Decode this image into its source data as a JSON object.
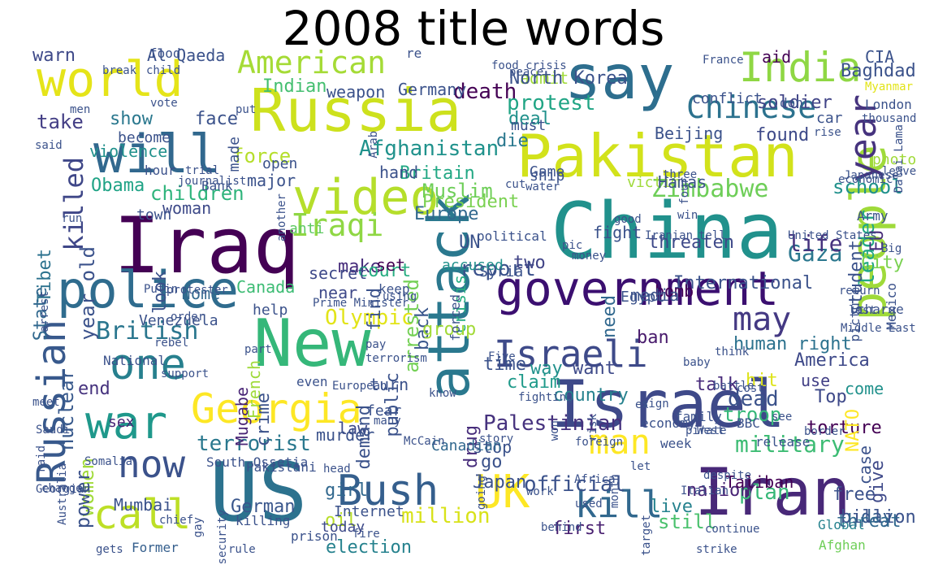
{
  "title": "2008 title words",
  "words": [
    {
      "text": "say",
      "color": "#2d6e8e"
    },
    {
      "text": "Russia",
      "color": "#cde11d"
    },
    {
      "text": "Pakistan",
      "color": "#d2e21b"
    },
    {
      "text": "China",
      "color": "#21918c"
    },
    {
      "text": "Iraq",
      "color": "#440154"
    },
    {
      "text": "government",
      "color": "#3b0f70"
    },
    {
      "text": "New",
      "color": "#35b779"
    },
    {
      "text": "Israel",
      "color": "#3e4989"
    },
    {
      "text": "US",
      "color": "#2c728e"
    },
    {
      "text": "Iran",
      "color": "#482878"
    },
    {
      "text": "attack",
      "color": "#2a788e"
    },
    {
      "text": "people",
      "color": "#9fda3a"
    },
    {
      "text": "world",
      "color": "#e5e419"
    },
    {
      "text": "will",
      "color": "#31688e"
    },
    {
      "text": "video",
      "color": "#b5de2b"
    },
    {
      "text": "police",
      "color": "#2f6c8e"
    },
    {
      "text": "Georgia",
      "color": "#fde725"
    },
    {
      "text": "war",
      "color": "#1f988b"
    },
    {
      "text": "Bush",
      "color": "#355f8d"
    },
    {
      "text": "UK",
      "color": "#fde725"
    },
    {
      "text": "India",
      "color": "#8fd744"
    },
    {
      "text": "Israeli",
      "color": "#3e4a89"
    },
    {
      "text": "now",
      "color": "#3b528b"
    },
    {
      "text": "one",
      "color": "#27808e"
    },
    {
      "text": "Russian",
      "color": "#38598c"
    },
    {
      "text": "call",
      "color": "#bddf26"
    },
    {
      "text": "year",
      "color": "#46337e"
    },
    {
      "text": "man",
      "color": "#fde725"
    },
    {
      "text": "kill",
      "color": "#31688e"
    },
    {
      "text": "Chinese",
      "color": "#2c728e"
    },
    {
      "text": "American",
      "color": "#a5db36"
    },
    {
      "text": "may",
      "color": "#443983"
    },
    {
      "text": "Zimbabwe",
      "color": "#6ece58"
    },
    {
      "text": "Iraqi",
      "color": "#8fd744"
    },
    {
      "text": "military",
      "color": "#3dbc74"
    },
    {
      "text": "killed",
      "color": "#3f4788"
    },
    {
      "text": "British",
      "color": "#2a768e"
    },
    {
      "text": "Afghanistan",
      "color": "#20928c"
    },
    {
      "text": "terrorist",
      "color": "#2a788e"
    },
    {
      "text": "official",
      "color": "#3b528b"
    },
    {
      "text": "protest",
      "color": "#21a585"
    },
    {
      "text": "children",
      "color": "#2fb47c"
    },
    {
      "text": "force",
      "color": "#b5de2b"
    },
    {
      "text": "Gaza",
      "color": "#2a778e"
    },
    {
      "text": "report",
      "color": "#3b528b"
    },
    {
      "text": "Olympic",
      "color": "#e2e418"
    },
    {
      "text": "Muslim",
      "color": "#6ece58"
    },
    {
      "text": "death",
      "color": "#440154"
    },
    {
      "text": "leader",
      "color": "#22a884"
    },
    {
      "text": "dead",
      "color": "#3b528b"
    },
    {
      "text": "plan",
      "color": "#37b878"
    },
    {
      "text": "million",
      "color": "#d8e219"
    },
    {
      "text": "oil",
      "color": "#b8de29"
    },
    {
      "text": "first",
      "color": "#481f70"
    },
    {
      "text": "Palestinian",
      "color": "#46327e"
    },
    {
      "text": "day",
      "color": "#365c8d"
    },
    {
      "text": "back",
      "color": "#39568c"
    },
    {
      "text": "crisis",
      "color": "#27ad81"
    },
    {
      "text": "arrested",
      "color": "#74d055"
    },
    {
      "text": "group",
      "color": "#a2da37"
    },
    {
      "text": "make",
      "color": "#472d7b"
    },
    {
      "text": "take",
      "color": "#433e85"
    },
    {
      "text": "face",
      "color": "#3b528b"
    },
    {
      "text": "show",
      "color": "#2a788e"
    },
    {
      "text": "Britain",
      "color": "#22a884"
    },
    {
      "text": "Obama",
      "color": "#20a386"
    },
    {
      "text": "woman",
      "color": "#3e4a89"
    },
    {
      "text": "President",
      "color": "#7ad151"
    },
    {
      "text": "UN",
      "color": "#3b528b"
    },
    {
      "text": "two",
      "color": "#414487"
    },
    {
      "text": "court",
      "color": "#27ad81"
    },
    {
      "text": "secret",
      "color": "#3e4989"
    },
    {
      "text": "Europe",
      "color": "#31688e"
    },
    {
      "text": "die",
      "color": "#2a788e"
    },
    {
      "text": "deal",
      "color": "#21918c"
    },
    {
      "text": "Indian",
      "color": "#44bf70"
    },
    {
      "text": "soldier",
      "color": "#414487"
    },
    {
      "text": "school",
      "color": "#21918c"
    },
    {
      "text": "life",
      "color": "#46337e"
    },
    {
      "text": "EU",
      "color": "#472c7a"
    },
    {
      "text": "found",
      "color": "#3e4a89"
    },
    {
      "text": "human right",
      "color": "#2c728e"
    },
    {
      "text": "America",
      "color": "#3e4989"
    },
    {
      "text": "Top",
      "color": "#3e4989"
    },
    {
      "text": "hit",
      "color": "#dde318"
    },
    {
      "text": "use",
      "color": "#424086"
    },
    {
      "text": "talk",
      "color": "#472a7a"
    },
    {
      "text": "ban",
      "color": "#481a6c"
    },
    {
      "text": "want",
      "color": "#3e4a89"
    },
    {
      "text": "claim",
      "color": "#1f9a8a"
    },
    {
      "text": "time",
      "color": "#3b528b"
    },
    {
      "text": "troop",
      "color": "#35b779"
    },
    {
      "text": "torture",
      "color": "#440154"
    },
    {
      "text": "free",
      "color": "#3b528b"
    },
    {
      "text": "still",
      "color": "#4ac16d"
    },
    {
      "text": "live",
      "color": "#26828e"
    },
    {
      "text": "go",
      "color": "#3b528b"
    },
    {
      "text": "drug",
      "color": "#472d7b"
    },
    {
      "text": "Japan",
      "color": "#3b528b"
    },
    {
      "text": "country",
      "color": "#26828e"
    },
    {
      "text": "law",
      "color": "#3e4a89"
    },
    {
      "text": "girl",
      "color": "#31688e"
    },
    {
      "text": "women",
      "color": "#a0da39"
    },
    {
      "text": "power",
      "color": "#3b528b"
    },
    {
      "text": "end",
      "color": "#46337e"
    },
    {
      "text": "nuclear",
      "color": "#38598c"
    },
    {
      "text": "year old",
      "color": "#3b528b"
    },
    {
      "text": "Tibet",
      "color": "#2c728e"
    },
    {
      "text": "State",
      "color": "#31688e"
    },
    {
      "text": "violence",
      "color": "#21918c"
    },
    {
      "text": "Canada",
      "color": "#3dbc74"
    },
    {
      "text": "home",
      "color": "#31688e"
    },
    {
      "text": "help",
      "color": "#3b528b"
    },
    {
      "text": "French",
      "color": "#9fda3a"
    },
    {
      "text": "Mugabe",
      "color": "#482475"
    },
    {
      "text": "German",
      "color": "#39568c"
    },
    {
      "text": "Mumbai",
      "color": "#3b528b"
    },
    {
      "text": "Former",
      "color": "#355f8d"
    },
    {
      "text": "today",
      "color": "#3e4a89"
    },
    {
      "text": "election",
      "color": "#26828e"
    },
    {
      "text": "nation",
      "color": "#482475"
    },
    {
      "text": "Taliban",
      "color": "#440154"
    },
    {
      "text": "Global",
      "color": "#26828e"
    },
    {
      "text": "billion",
      "color": "#3b528b"
    },
    {
      "text": "Afghan",
      "color": "#6ece58"
    },
    {
      "text": "threat",
      "color": "#31688e"
    },
    {
      "text": "give",
      "color": "#3e4989"
    },
    {
      "text": "NATO",
      "color": "#fde725"
    },
    {
      "text": "come",
      "color": "#21918c"
    },
    {
      "text": "case",
      "color": "#3b528b"
    },
    {
      "text": "City",
      "color": "#7ad151"
    },
    {
      "text": "student",
      "color": "#3b528b"
    },
    {
      "text": "International",
      "color": "#3b528b"
    },
    {
      "text": "bomb",
      "color": "#440154"
    },
    {
      "text": "media",
      "color": "#3b528b"
    },
    {
      "text": "need",
      "color": "#31688e"
    },
    {
      "text": "threaten",
      "color": "#3e4989"
    },
    {
      "text": "fight",
      "color": "#3b528b"
    },
    {
      "text": "way",
      "color": "#21918c"
    },
    {
      "text": "anti",
      "color": "#5ec962"
    },
    {
      "text": "accused",
      "color": "#21918c"
    },
    {
      "text": "set",
      "color": "#440154"
    },
    {
      "text": "near",
      "color": "#3e4989"
    },
    {
      "text": "find",
      "color": "#3b528b"
    },
    {
      "text": "look",
      "color": "#3b528b"
    },
    {
      "text": "Venezuela",
      "color": "#3b528b"
    },
    {
      "text": "turn",
      "color": "#3b528b"
    },
    {
      "text": "sex",
      "color": "#482475"
    },
    {
      "text": "crime",
      "color": "#3b528b"
    },
    {
      "text": "public",
      "color": "#3b528b"
    },
    {
      "text": "murder",
      "color": "#3b528b"
    },
    {
      "text": "Internet",
      "color": "#3b528b"
    },
    {
      "text": "stop",
      "color": "#3b528b"
    },
    {
      "text": "Canadian",
      "color": "#31688e"
    },
    {
      "text": "demand",
      "color": "#3b528b"
    },
    {
      "text": "warn",
      "color": "#3e4989"
    },
    {
      "text": "Al Qaeda",
      "color": "#3b528b"
    },
    {
      "text": "food",
      "color": "#3b528b"
    },
    {
      "text": "re",
      "color": "#3b528b"
    },
    {
      "text": "admit",
      "color": "#a0da39"
    },
    {
      "text": "North Korea",
      "color": "#3b528b"
    },
    {
      "text": "peace",
      "color": "#3b528b"
    },
    {
      "text": "aid",
      "color": "#440154"
    },
    {
      "text": "CIA",
      "color": "#3b528b"
    },
    {
      "text": "France",
      "color": "#3b528b"
    },
    {
      "text": "Baghdad",
      "color": "#3b528b"
    },
    {
      "text": "Myanmar",
      "color": "#e2e418"
    },
    {
      "text": "don",
      "color": "#3b528b"
    },
    {
      "text": "car",
      "color": "#3b528b"
    },
    {
      "text": "London",
      "color": "#3b528b"
    },
    {
      "text": "conflict",
      "color": "#3b528b"
    },
    {
      "text": "Beijing",
      "color": "#3b528b"
    },
    {
      "text": "victim",
      "color": "#9fda3a"
    },
    {
      "text": "Hamas",
      "color": "#3b528b"
    },
    {
      "text": "weapon",
      "color": "#3b528b"
    },
    {
      "text": "Germany",
      "color": "#3b528b"
    },
    {
      "text": "vote",
      "color": "#3b528b"
    },
    {
      "text": "men",
      "color": "#3b528b"
    },
    {
      "text": "put",
      "color": "#3b528b"
    },
    {
      "text": "become",
      "color": "#3b528b"
    },
    {
      "text": "hour",
      "color": "#3b528b"
    },
    {
      "text": "Bank",
      "color": "#3b528b"
    },
    {
      "text": "made",
      "color": "#3b528b"
    },
    {
      "text": "open",
      "color": "#3b528b"
    },
    {
      "text": "said",
      "color": "#3b528b"
    },
    {
      "text": "trial",
      "color": "#3b528b"
    },
    {
      "text": "journalist",
      "color": "#3b528b"
    },
    {
      "text": "major",
      "color": "#3b528b"
    },
    {
      "text": "hand",
      "color": "#3b528b"
    },
    {
      "text": "another",
      "color": "#3b528b"
    },
    {
      "text": "ship",
      "color": "#3b528b"
    },
    {
      "text": "water",
      "color": "#3b528b"
    },
    {
      "text": "cut",
      "color": "#3b528b"
    },
    {
      "text": "must",
      "color": "#3b528b"
    },
    {
      "text": "Game",
      "color": "#3b528b"
    },
    {
      "text": "photo",
      "color": "#a0da39"
    },
    {
      "text": "economic",
      "color": "#3b528b"
    },
    {
      "text": "Army",
      "color": "#3b528b"
    },
    {
      "text": "leave",
      "color": "#3b528b"
    },
    {
      "text": "Dalai Lama",
      "color": "#3b528b"
    },
    {
      "text": "thousand",
      "color": "#3b528b"
    },
    {
      "text": "political",
      "color": "#3b528b"
    },
    {
      "text": "town",
      "color": "#3b528b"
    },
    {
      "text": "Iranian",
      "color": "#3b528b"
    },
    {
      "text": "tell",
      "color": "#3b528b"
    },
    {
      "text": "United States",
      "color": "#3b528b"
    },
    {
      "text": "Putin",
      "color": "#3b528b"
    },
    {
      "text": "protester",
      "color": "#3b528b"
    },
    {
      "text": "Syria",
      "color": "#3b528b"
    },
    {
      "text": "pic",
      "color": "#3b528b"
    },
    {
      "text": "money",
      "color": "#3b528b"
    },
    {
      "text": "good",
      "color": "#3b528b"
    },
    {
      "text": "Egypt",
      "color": "#3b528b"
    },
    {
      "text": "Big",
      "color": "#3b528b"
    },
    {
      "text": "Mexico",
      "color": "#3b528b"
    },
    {
      "text": "picture",
      "color": "#3b528b"
    },
    {
      "text": "charge",
      "color": "#3b528b"
    },
    {
      "text": "return",
      "color": "#3b528b"
    },
    {
      "text": "Middle East",
      "color": "#3b528b"
    },
    {
      "text": "last",
      "color": "#3b528b"
    },
    {
      "text": "National",
      "color": "#3b528b"
    },
    {
      "text": "part",
      "color": "#3b528b"
    },
    {
      "text": "Prime Minister",
      "color": "#3b528b"
    },
    {
      "text": "using",
      "color": "#3b528b"
    },
    {
      "text": "keep",
      "color": "#3b528b"
    },
    {
      "text": "forced",
      "color": "#3b528b"
    },
    {
      "text": "pay",
      "color": "#3b528b"
    },
    {
      "text": "terrorism",
      "color": "#3b528b"
    },
    {
      "text": "order",
      "color": "#3b528b"
    },
    {
      "text": "arrest",
      "color": "#3b528b"
    },
    {
      "text": "even",
      "color": "#3b528b"
    },
    {
      "text": "European",
      "color": "#3b528b"
    },
    {
      "text": "Five",
      "color": "#3b528b"
    },
    {
      "text": "fear",
      "color": "#3b528b"
    },
    {
      "text": "know",
      "color": "#3b528b"
    },
    {
      "text": "BBC",
      "color": "#3b528b"
    },
    {
      "text": "battle",
      "color": "#3b528b"
    },
    {
      "text": "see",
      "color": "#3b528b"
    },
    {
      "text": "baby",
      "color": "#3b528b"
    },
    {
      "text": "think",
      "color": "#3b528b"
    },
    {
      "text": "despite",
      "color": "#3b528b"
    },
    {
      "text": "ex",
      "color": "#3b528b"
    },
    {
      "text": "cost",
      "color": "#3b528b"
    },
    {
      "text": "pirate",
      "color": "#3b528b"
    },
    {
      "text": "fighting",
      "color": "#3b528b"
    },
    {
      "text": "rebel",
      "color": "#3b528b"
    },
    {
      "text": "many",
      "color": "#3b528b"
    },
    {
      "text": "meet",
      "color": "#3b528b"
    },
    {
      "text": "support",
      "color": "#3b528b"
    },
    {
      "text": "Saudi",
      "color": "#3b528b"
    },
    {
      "text": "change",
      "color": "#3b528b"
    },
    {
      "text": "Australia",
      "color": "#3b528b"
    },
    {
      "text": "raid",
      "color": "#3b528b"
    },
    {
      "text": "Somalia",
      "color": "#3b528b"
    },
    {
      "text": "South Ossetia",
      "color": "#3b528b"
    },
    {
      "text": "Pakistani",
      "color": "#3b528b"
    },
    {
      "text": "head",
      "color": "#3b528b"
    },
    {
      "text": "McCain",
      "color": "#3b528b"
    },
    {
      "text": "story",
      "color": "#3b528b"
    },
    {
      "text": "won",
      "color": "#3b528b"
    },
    {
      "text": "foreign",
      "color": "#3b528b"
    },
    {
      "text": "risk",
      "color": "#3b528b"
    },
    {
      "text": "family",
      "color": "#3b528b"
    },
    {
      "text": "release",
      "color": "#3b528b"
    },
    {
      "text": "border",
      "color": "#3b528b"
    },
    {
      "text": "Africa",
      "color": "#3b528b"
    },
    {
      "text": "work",
      "color": "#3b528b"
    },
    {
      "text": "used",
      "color": "#3b528b"
    },
    {
      "text": "month",
      "color": "#3b528b"
    },
    {
      "text": "let",
      "color": "#3b528b"
    },
    {
      "text": "Italian",
      "color": "#3b528b"
    },
    {
      "text": "sign",
      "color": "#3b528b"
    },
    {
      "text": "West",
      "color": "#3b528b"
    },
    {
      "text": "Georgian",
      "color": "#3b528b"
    },
    {
      "text": "chief",
      "color": "#3b528b"
    },
    {
      "text": "gay",
      "color": "#3b528b"
    },
    {
      "text": "security",
      "color": "#3b528b"
    },
    {
      "text": "killing",
      "color": "#3b528b"
    },
    {
      "text": "prison",
      "color": "#3b528b"
    },
    {
      "text": "fire",
      "color": "#3b528b"
    },
    {
      "text": "behind",
      "color": "#3b528b"
    },
    {
      "text": "target",
      "color": "#3b528b"
    },
    {
      "text": "continue",
      "color": "#3b528b"
    },
    {
      "text": "strike",
      "color": "#3b528b"
    },
    {
      "text": "gets",
      "color": "#3b528b"
    },
    {
      "text": "rule",
      "color": "#3b528b"
    },
    {
      "text": "week",
      "color": "#3b528b"
    },
    {
      "text": "economy",
      "color": "#3b528b"
    },
    {
      "text": "three",
      "color": "#3b528b"
    },
    {
      "text": "win",
      "color": "#3b528b"
    },
    {
      "text": "four",
      "color": "#3b528b"
    },
    {
      "text": "break",
      "color": "#3b528b"
    },
    {
      "text": "child",
      "color": "#3b528b"
    },
    {
      "text": "food crisis",
      "color": "#3b528b"
    },
    {
      "text": "Arab",
      "color": "#3b528b"
    },
    {
      "text": "going",
      "color": "#3b528b"
    },
    {
      "text": "rise",
      "color": "#3b528b"
    },
    {
      "text": "Japanese",
      "color": "#3b528b"
    },
    {
      "text": "run",
      "color": "#3b528b"
    }
  ]
}
